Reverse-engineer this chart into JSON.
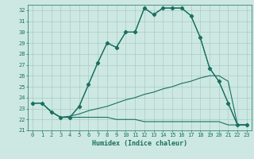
{
  "xlabel": "Humidex (Indice chaleur)",
  "bg_color": "#cde8e2",
  "line_color": "#1a7060",
  "grid_color": "#a8ccc6",
  "ylim": [
    21,
    32.5
  ],
  "xlim": [
    -0.5,
    23.5
  ],
  "yticks": [
    21,
    22,
    23,
    24,
    25,
    26,
    27,
    28,
    29,
    30,
    31,
    32
  ],
  "xticks": [
    0,
    1,
    2,
    3,
    4,
    5,
    6,
    7,
    8,
    9,
    10,
    11,
    12,
    13,
    14,
    15,
    16,
    17,
    18,
    19,
    20,
    21,
    22,
    23
  ],
  "curve1_x": [
    0,
    1,
    2,
    3,
    4,
    5,
    6,
    7,
    8,
    9,
    10,
    11,
    12,
    13,
    14,
    15,
    16,
    17,
    18,
    19,
    20,
    21,
    22,
    23
  ],
  "curve1_y": [
    23.5,
    23.5,
    22.7,
    22.2,
    22.2,
    23.2,
    25.2,
    27.2,
    29.0,
    28.6,
    30.0,
    30.0,
    32.2,
    31.6,
    32.2,
    32.2,
    32.2,
    31.5,
    29.5,
    26.7,
    25.5,
    23.5,
    21.5,
    21.5
  ],
  "curve2_x": [
    0,
    1,
    2,
    3,
    4,
    5,
    6,
    7,
    8,
    9,
    10,
    11,
    12,
    13,
    14,
    15,
    16,
    17,
    18,
    19,
    20,
    21,
    22,
    23
  ],
  "curve2_y": [
    23.5,
    23.5,
    22.7,
    22.2,
    22.2,
    23.2,
    25.2,
    27.2,
    29.0,
    28.6,
    30.0,
    30.0,
    32.2,
    31.6,
    32.2,
    32.2,
    32.2,
    31.5,
    29.5,
    26.7,
    25.5,
    23.5,
    21.5,
    21.5
  ],
  "curve3_x": [
    0,
    1,
    2,
    3,
    4,
    5,
    6,
    7,
    8,
    9,
    10,
    11,
    12,
    13,
    14,
    15,
    16,
    17,
    18,
    19,
    20,
    21,
    22,
    23
  ],
  "curve3_y": [
    23.5,
    23.5,
    22.7,
    22.2,
    22.3,
    22.5,
    22.8,
    23.0,
    23.2,
    23.5,
    23.8,
    24.0,
    24.3,
    24.5,
    24.8,
    25.0,
    25.3,
    25.5,
    25.8,
    26.0,
    26.0,
    25.5,
    21.5,
    21.5
  ],
  "curve4_x": [
    0,
    1,
    2,
    3,
    4,
    5,
    6,
    7,
    8,
    9,
    10,
    11,
    12,
    13,
    14,
    15,
    16,
    17,
    18,
    19,
    20,
    21,
    22,
    23
  ],
  "curve4_y": [
    23.5,
    23.5,
    22.7,
    22.2,
    22.2,
    22.2,
    22.2,
    22.2,
    22.2,
    22.0,
    22.0,
    22.0,
    21.8,
    21.8,
    21.8,
    21.8,
    21.8,
    21.8,
    21.8,
    21.8,
    21.8,
    21.5,
    21.5,
    21.5
  ]
}
